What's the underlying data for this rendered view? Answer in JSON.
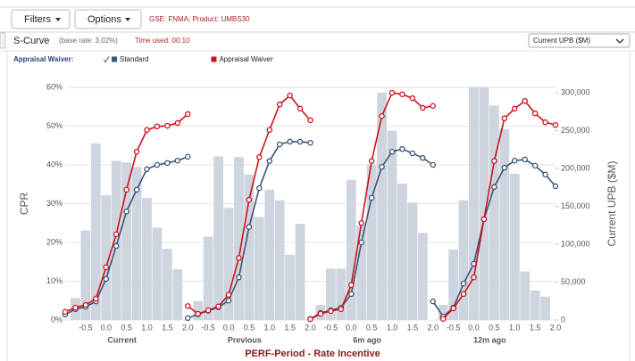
{
  "toolbar": {
    "filters": "Filters",
    "options": "Options",
    "context": "GSE: FNMA; Product: UMBS30"
  },
  "header": {
    "title": "S-Curve",
    "subtitle": "(base rate: 3.02%)",
    "time": "Time used: 00:10",
    "dropdown": "Current UPB ($M)"
  },
  "chart_data": {
    "type": "combo",
    "legend_title": "Appraisal Waiver:",
    "ylabel": "CPR",
    "y2label": "Current UPB ($M)",
    "xlabel": "PERF-Period - Rate Incentive",
    "panels": [
      "Current",
      "Previous",
      "6m ago",
      "12m ago"
    ],
    "x": [
      -1,
      -0.75,
      -0.5,
      -0.25,
      0,
      0.25,
      0.5,
      0.75,
      1,
      1.25,
      1.5,
      1.75,
      2
    ],
    "xlim": [
      -1,
      2
    ],
    "xticks": [
      -0.5,
      {
        "value": 0,
        "label": "0.0"
      },
      0.5,
      {
        "value": 1,
        "label": "1.0"
      },
      1.5,
      {
        "value": 2,
        "label": "2.0"
      }
    ],
    "ylim": [
      0,
      60
    ],
    "yticks": [
      {
        "value": 0,
        "label": "0%"
      },
      {
        "value": 10,
        "label": "10%"
      },
      {
        "value": 20,
        "label": "20%"
      },
      {
        "value": 30,
        "label": "30%"
      },
      {
        "value": 40,
        "label": "40%"
      },
      {
        "value": 50,
        "label": "50%"
      },
      {
        "value": 60,
        "label": "60%"
      }
    ],
    "y2lim": [
      0,
      307000
    ],
    "y2ticks": [
      0,
      {
        "value": 50000,
        "label": "50,000"
      },
      {
        "value": 100000,
        "label": "100,000"
      },
      {
        "value": 150000,
        "label": "150,000"
      },
      {
        "value": 200000,
        "label": "200,000"
      },
      {
        "value": 250000,
        "label": "250,000"
      },
      {
        "value": 300000,
        "label": "300,000"
      }
    ],
    "grid": true,
    "bars": {
      "color": "#cfd5df",
      "axis": "y2",
      "values": [
        [
          null,
          29000,
          118000,
          233000,
          165000,
          210000,
          208000,
          202000,
          161000,
          122000,
          94000,
          67000,
          null
        ],
        [
          null,
          25000,
          110000,
          216000,
          148000,
          215000,
          192000,
          136000,
          172000,
          158000,
          86000,
          127000,
          null
        ],
        [
          null,
          20000,
          68000,
          68000,
          185000,
          125000,
          205000,
          300000,
          250000,
          180000,
          155000,
          115000,
          null
        ],
        [
          null,
          20000,
          93000,
          158000,
          320000,
          320000,
          283000,
          252000,
          193000,
          64000,
          39000,
          31000,
          null
        ]
      ]
    },
    "series": [
      {
        "name": "Standard",
        "color": "#3b5577",
        "checked": true,
        "values": [
          [
            1.4,
            2.8,
            3.4,
            4.8,
            10.6,
            19.1,
            28,
            33.6,
            38.9,
            40,
            40.5,
            41.1,
            42.1
          ],
          [
            0.5,
            1.5,
            2.4,
            3.3,
            5,
            11,
            24,
            34,
            41,
            45.3,
            46,
            46,
            45.7
          ],
          [
            0.3,
            1.8,
            2.5,
            3.2,
            6.7,
            20,
            31.5,
            39.5,
            43.4,
            44.1,
            43,
            41.8,
            40
          ],
          [
            4.8,
            0.9,
            3.2,
            9.4,
            14.5,
            26,
            34.3,
            39.3,
            41.1,
            41.4,
            39.8,
            37.5,
            34.5
          ]
        ]
      },
      {
        "name": "Appraisal Waiver",
        "color": "#d0121b",
        "values": [
          [
            2.1,
            3.2,
            3.9,
            5.5,
            13.6,
            22.1,
            33.6,
            43.4,
            49,
            49.9,
            50.1,
            50.8,
            53.1
          ],
          [
            3.6,
            1.6,
            2.5,
            3.5,
            6.5,
            16,
            31,
            42,
            49,
            55.6,
            57.9,
            54.5,
            51.5
          ],
          [
            0.2,
            1.6,
            2.3,
            2.8,
            9,
            25,
            41,
            52.6,
            58.6,
            58.2,
            57.2,
            54.7,
            55.2
          ],
          [
            null,
            0.3,
            3,
            6.7,
            11,
            26,
            41,
            52,
            54.5,
            56.5,
            53.3,
            51,
            50.3
          ]
        ]
      }
    ]
  }
}
